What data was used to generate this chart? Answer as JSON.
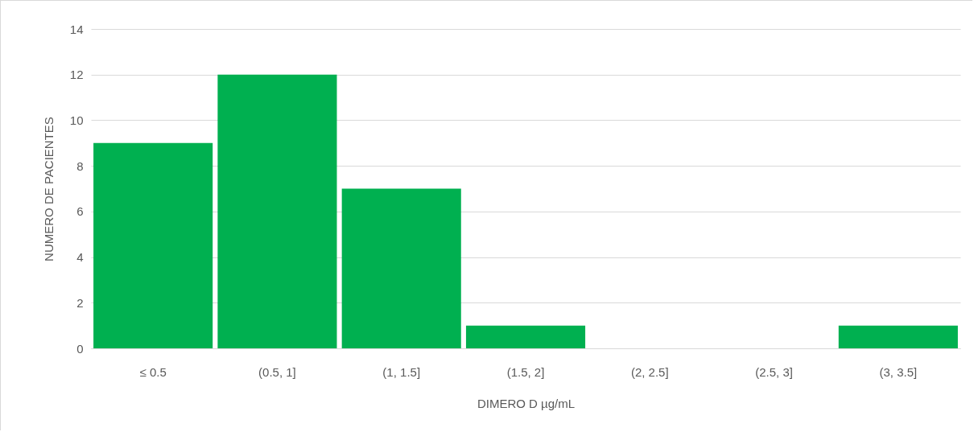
{
  "chart_data": {
    "type": "bar",
    "xlabel": "DIMERO D µg/mL",
    "ylabel": "NUMERO DE PACIENTES",
    "categories": [
      "≤ 0.5",
      "(0.5, 1]",
      "(1, 1.5]",
      "(1.5, 2]",
      "(2, 2.5]",
      "(2.5, 3]",
      "(3, 3.5]"
    ],
    "values": [
      9,
      12,
      7,
      1,
      0,
      0,
      1
    ],
    "color": "#00b050",
    "ylim": [
      0,
      14
    ],
    "yticks": [
      0,
      2,
      4,
      6,
      8,
      10,
      12,
      14
    ],
    "grid": "y"
  }
}
